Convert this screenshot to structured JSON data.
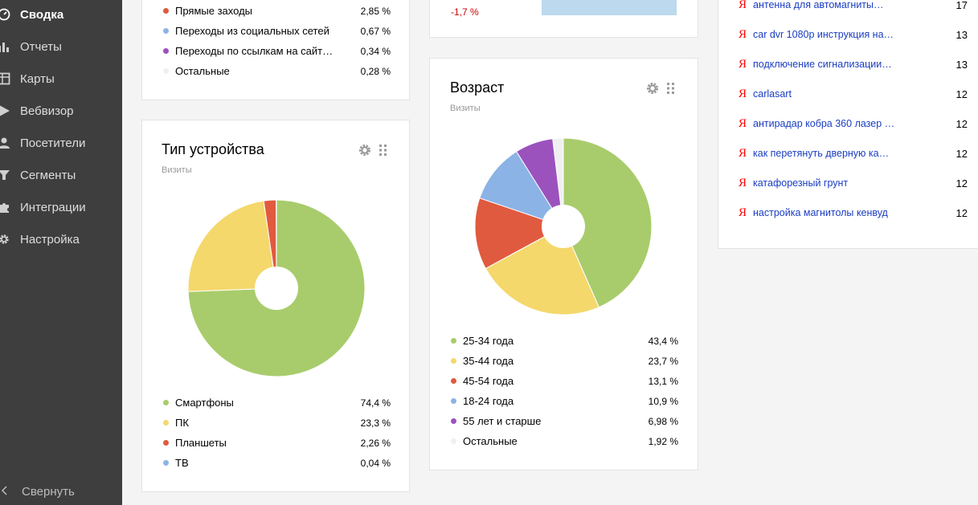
{
  "sidebar": {
    "items": [
      {
        "label": "Сводка",
        "icon": "gauge-icon",
        "active": true
      },
      {
        "label": "Отчеты",
        "icon": "bar-chart-icon"
      },
      {
        "label": "Карты",
        "icon": "map-icon"
      },
      {
        "label": "Вебвизор",
        "icon": "play-icon"
      },
      {
        "label": "Посетители",
        "icon": "user-icon"
      },
      {
        "label": "Сегменты",
        "icon": "funnel-icon"
      },
      {
        "label": "Интеграции",
        "icon": "puzzle-icon"
      },
      {
        "label": "Настройка",
        "icon": "gear-icon"
      }
    ],
    "collapse_label": "Свернуть"
  },
  "traffic_card": {
    "rows": [
      {
        "label": "Прямые заходы",
        "value": "2,85 %",
        "color": "#e05a3f"
      },
      {
        "label": "Переходы из социальных сетей",
        "value": "0,67 %",
        "color": "#8cb3e6"
      },
      {
        "label": "Переходы по ссылкам на сайт…",
        "value": "0,34 %",
        "color": "#9b52bd"
      },
      {
        "label": "Остальные",
        "value": "0,28 %",
        "color": "#f0f0f0"
      }
    ]
  },
  "top_mid_card": {
    "change": "-1,7 %"
  },
  "device_card": {
    "title": "Тип устройства",
    "subtitle": "Визиты",
    "rows": [
      {
        "label": "Смартфоны",
        "value": "74,4 %",
        "color": "#a8cc6b"
      },
      {
        "label": "ПК",
        "value": "23,3 %",
        "color": "#f4d86c"
      },
      {
        "label": "Планшеты",
        "value": "2,26 %",
        "color": "#e05a3f"
      },
      {
        "label": "ТВ",
        "value": "0,04 %",
        "color": "#8cb3e6"
      }
    ]
  },
  "age_card": {
    "title": "Возраст",
    "subtitle": "Визиты",
    "rows": [
      {
        "label": "25-34 года",
        "value": "43,4 %",
        "color": "#a8cc6b"
      },
      {
        "label": "35-44 года",
        "value": "23,7 %",
        "color": "#f4d86c"
      },
      {
        "label": "45-54 года",
        "value": "13,1 %",
        "color": "#e05a3f"
      },
      {
        "label": "18-24 года",
        "value": "10,9 %",
        "color": "#8cb3e6"
      },
      {
        "label": "55 лет и старше",
        "value": "6,98 %",
        "color": "#9b52bd"
      },
      {
        "label": "Остальные",
        "value": "1,92 %",
        "color": "#f0f0f0"
      }
    ]
  },
  "phrases": {
    "items": [
      {
        "text": "антенна для автомагниты…",
        "count": "17"
      },
      {
        "text": "car dvr 1080p инструкция на…",
        "count": "13"
      },
      {
        "text": "подключение сигнализации…",
        "count": "13"
      },
      {
        "text": "carlasart",
        "count": "12"
      },
      {
        "text": "антирадар кобра 360 лазер …",
        "count": "12"
      },
      {
        "text": "как перетянуть дверную ка…",
        "count": "12"
      },
      {
        "text": "катафорезный грунт",
        "count": "12"
      },
      {
        "text": "настройка магнитолы кенвуд",
        "count": "12"
      }
    ],
    "logo_char": "Я"
  },
  "chart_data": [
    {
      "type": "pie",
      "title": "Тип устройства",
      "categories": [
        "Смартфоны",
        "ПК",
        "Планшеты",
        "ТВ"
      ],
      "values": [
        74.4,
        23.3,
        2.26,
        0.04
      ],
      "colors": [
        "#a8cc6b",
        "#f4d86c",
        "#e05a3f",
        "#8cb3e6"
      ]
    },
    {
      "type": "pie",
      "title": "Возраст",
      "categories": [
        "25-34 года",
        "35-44 года",
        "45-54 года",
        "18-24 года",
        "55 лет и старше",
        "Остальные"
      ],
      "values": [
        43.4,
        23.7,
        13.1,
        10.9,
        6.98,
        1.92
      ],
      "colors": [
        "#a8cc6b",
        "#f4d86c",
        "#e05a3f",
        "#8cb3e6",
        "#9b52bd",
        "#f0f0f0"
      ]
    }
  ]
}
